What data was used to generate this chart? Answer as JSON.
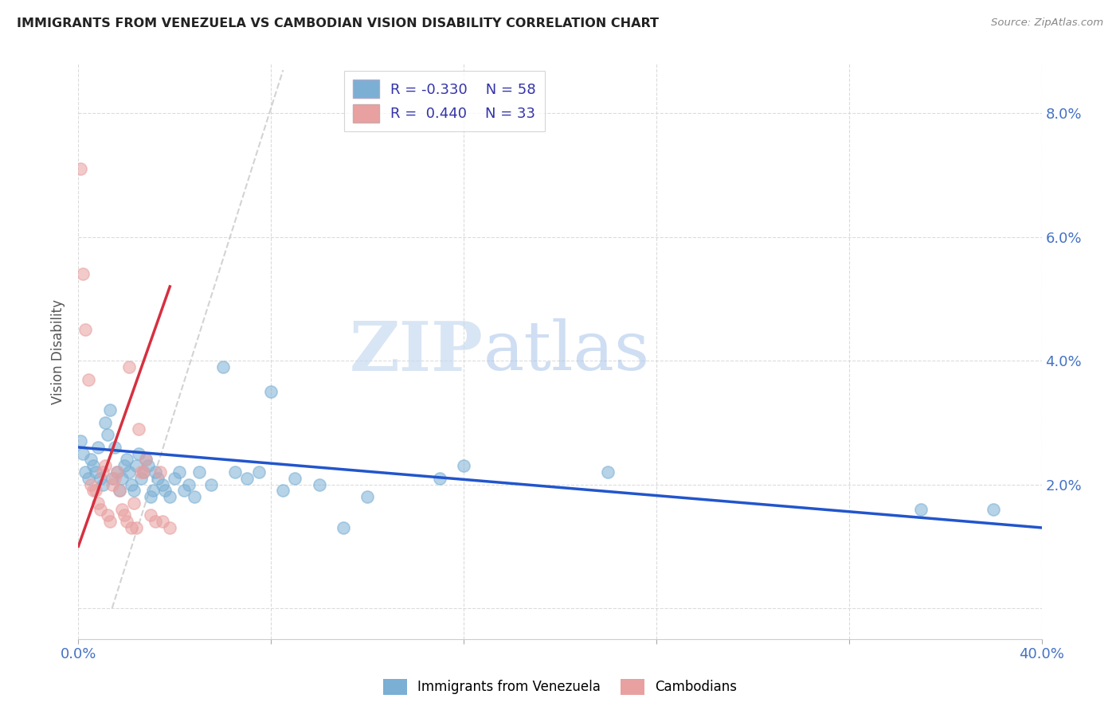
{
  "title": "IMMIGRANTS FROM VENEZUELA VS CAMBODIAN VISION DISABILITY CORRELATION CHART",
  "source": "Source: ZipAtlas.com",
  "ylabel": "Vision Disability",
  "xlim": [
    0.0,
    0.4
  ],
  "ylim": [
    -0.005,
    0.088
  ],
  "yticks": [
    0.0,
    0.02,
    0.04,
    0.06,
    0.08
  ],
  "ytick_labels": [
    "",
    "2.0%",
    "4.0%",
    "6.0%",
    "8.0%"
  ],
  "xticks": [
    0.0,
    0.08,
    0.16,
    0.24,
    0.32,
    0.4
  ],
  "xtick_labels": [
    "0.0%",
    "",
    "",
    "",
    "",
    "40.0%"
  ],
  "watermark_zip": "ZIP",
  "watermark_atlas": "atlas",
  "legend_r1": "R = -0.330",
  "legend_n1": "N = 58",
  "legend_r2": "R =  0.440",
  "legend_n2": "N = 33",
  "blue_color": "#7bafd4",
  "pink_color": "#e8a0a0",
  "trendline_blue_color": "#2255cc",
  "trendline_pink_color": "#d63040",
  "trendline_gray_color": "#c8c8c8",
  "grid_color": "#d8d8d8",
  "title_color": "#222222",
  "axis_color": "#4472c4",
  "blue_scatter": [
    [
      0.001,
      0.027
    ],
    [
      0.002,
      0.025
    ],
    [
      0.003,
      0.022
    ],
    [
      0.004,
      0.021
    ],
    [
      0.005,
      0.024
    ],
    [
      0.006,
      0.023
    ],
    [
      0.007,
      0.022
    ],
    [
      0.008,
      0.026
    ],
    [
      0.009,
      0.021
    ],
    [
      0.01,
      0.02
    ],
    [
      0.011,
      0.03
    ],
    [
      0.012,
      0.028
    ],
    [
      0.013,
      0.032
    ],
    [
      0.014,
      0.021
    ],
    [
      0.015,
      0.026
    ],
    [
      0.016,
      0.022
    ],
    [
      0.017,
      0.019
    ],
    [
      0.018,
      0.021
    ],
    [
      0.019,
      0.023
    ],
    [
      0.02,
      0.024
    ],
    [
      0.021,
      0.022
    ],
    [
      0.022,
      0.02
    ],
    [
      0.023,
      0.019
    ],
    [
      0.024,
      0.023
    ],
    [
      0.025,
      0.025
    ],
    [
      0.026,
      0.021
    ],
    [
      0.027,
      0.022
    ],
    [
      0.028,
      0.024
    ],
    [
      0.029,
      0.023
    ],
    [
      0.03,
      0.018
    ],
    [
      0.031,
      0.019
    ],
    [
      0.032,
      0.022
    ],
    [
      0.033,
      0.021
    ],
    [
      0.035,
      0.02
    ],
    [
      0.036,
      0.019
    ],
    [
      0.038,
      0.018
    ],
    [
      0.04,
      0.021
    ],
    [
      0.042,
      0.022
    ],
    [
      0.044,
      0.019
    ],
    [
      0.046,
      0.02
    ],
    [
      0.048,
      0.018
    ],
    [
      0.05,
      0.022
    ],
    [
      0.055,
      0.02
    ],
    [
      0.06,
      0.039
    ],
    [
      0.065,
      0.022
    ],
    [
      0.07,
      0.021
    ],
    [
      0.075,
      0.022
    ],
    [
      0.08,
      0.035
    ],
    [
      0.085,
      0.019
    ],
    [
      0.09,
      0.021
    ],
    [
      0.1,
      0.02
    ],
    [
      0.11,
      0.013
    ],
    [
      0.12,
      0.018
    ],
    [
      0.15,
      0.021
    ],
    [
      0.16,
      0.023
    ],
    [
      0.22,
      0.022
    ],
    [
      0.35,
      0.016
    ],
    [
      0.38,
      0.016
    ]
  ],
  "pink_scatter": [
    [
      0.001,
      0.071
    ],
    [
      0.002,
      0.054
    ],
    [
      0.003,
      0.045
    ],
    [
      0.004,
      0.037
    ],
    [
      0.005,
      0.02
    ],
    [
      0.006,
      0.019
    ],
    [
      0.007,
      0.019
    ],
    [
      0.008,
      0.017
    ],
    [
      0.009,
      0.016
    ],
    [
      0.01,
      0.022
    ],
    [
      0.011,
      0.023
    ],
    [
      0.012,
      0.015
    ],
    [
      0.013,
      0.014
    ],
    [
      0.014,
      0.02
    ],
    [
      0.015,
      0.021
    ],
    [
      0.016,
      0.022
    ],
    [
      0.017,
      0.019
    ],
    [
      0.018,
      0.016
    ],
    [
      0.019,
      0.015
    ],
    [
      0.02,
      0.014
    ],
    [
      0.021,
      0.039
    ],
    [
      0.022,
      0.013
    ],
    [
      0.023,
      0.017
    ],
    [
      0.024,
      0.013
    ],
    [
      0.025,
      0.029
    ],
    [
      0.026,
      0.022
    ],
    [
      0.027,
      0.022
    ],
    [
      0.028,
      0.024
    ],
    [
      0.03,
      0.015
    ],
    [
      0.032,
      0.014
    ],
    [
      0.034,
      0.022
    ],
    [
      0.035,
      0.014
    ],
    [
      0.038,
      0.013
    ]
  ],
  "blue_trendline_x": [
    0.0,
    0.4
  ],
  "blue_trendline_y": [
    0.026,
    0.013
  ],
  "pink_trendline_x": [
    0.0,
    0.038
  ],
  "pink_trendline_y": [
    0.01,
    0.052
  ],
  "gray_line_x": [
    0.014,
    0.085
  ],
  "gray_line_y": [
    0.0,
    0.087
  ]
}
